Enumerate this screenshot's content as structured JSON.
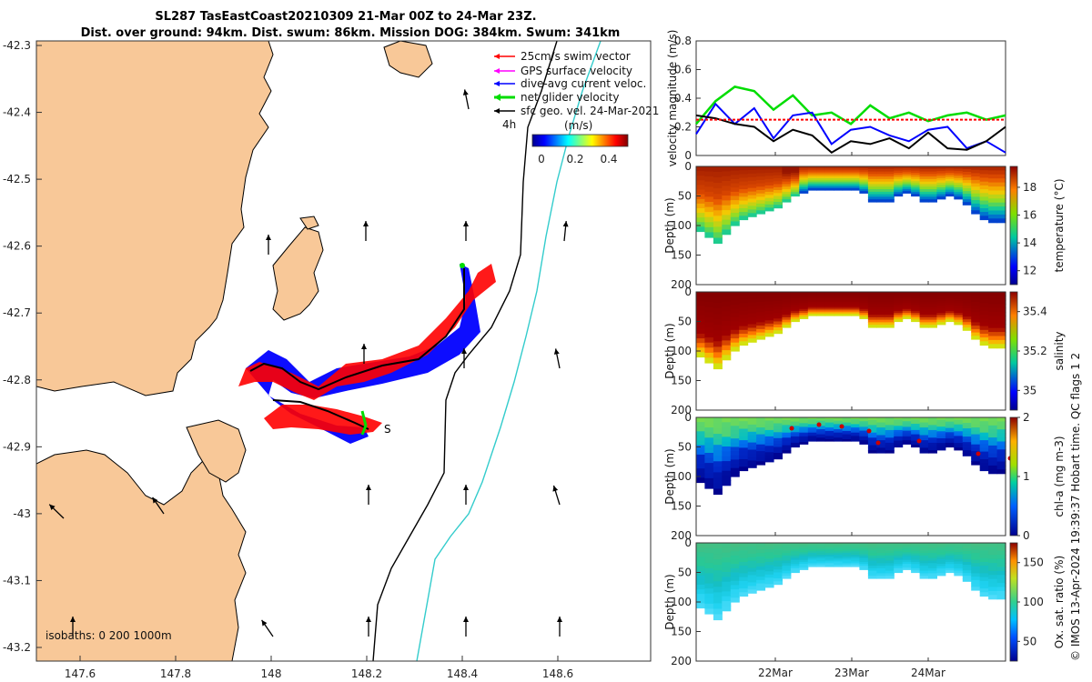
{
  "title": {
    "line1": "SL287 TasEastCoast20210309 21-Mar 00Z to 24-Mar 23Z.",
    "line2": "Dist. over ground: 94km. Dist. swum: 86km. Mission DOG: 384km. Swum: 341km"
  },
  "colors": {
    "land": "#f8c898",
    "shelf_200": "#000000",
    "isobath_1000": "#33cccc",
    "swim_vec": "#ff0000",
    "dive_avg": "#0000ff",
    "net_vel": "#00dd00",
    "gps": "#ff00ff",
    "sfc_geo": "#000000"
  },
  "map": {
    "xticks": [
      "147.6",
      "147.8",
      "148",
      "148.2",
      "148.4",
      "148.6"
    ],
    "yticks": [
      "-42.3",
      "-42.4",
      "-42.5",
      "-42.6",
      "-42.7",
      "-42.8",
      "-42.9",
      "-43",
      "-43.1",
      "-43.2"
    ],
    "isobath_text": "isobaths: 0   200  1000m",
    "start_label": "S",
    "time_label": "4h",
    "legend": [
      {
        "name": "swim",
        "label": "25cm/s swim vector"
      },
      {
        "name": "gps",
        "label": "GPS surface velocity"
      },
      {
        "name": "dive",
        "label": "dive-avg current veloc."
      },
      {
        "name": "net",
        "label": "net glider velocity"
      },
      {
        "name": "sfc",
        "label": "sfc geo. vel. 24-Mar-2021"
      }
    ],
    "colorbar": {
      "label": "(m/s)",
      "ticks": [
        "0",
        "0.2",
        "0.4"
      ]
    }
  },
  "chart_data": [
    {
      "type": "line",
      "name": "velocity-panel",
      "ylabel": "velocity magnitude (m/s)",
      "ylim": [
        0,
        0.8
      ],
      "yticks": [
        "0",
        "0.2",
        "0.4",
        "0.6",
        "0.8"
      ],
      "x_days": [
        0,
        0.25,
        0.5,
        0.75,
        1,
        1.25,
        1.5,
        1.75,
        2,
        2.25,
        2.5,
        2.75,
        3,
        3.25,
        3.5,
        3.75,
        4
      ],
      "series": [
        {
          "name": "net glider velocity",
          "color": "#00dd00",
          "values": [
            0.22,
            0.38,
            0.48,
            0.45,
            0.32,
            0.42,
            0.28,
            0.3,
            0.22,
            0.35,
            0.26,
            0.3,
            0.24,
            0.28,
            0.3,
            0.25,
            0.28
          ]
        },
        {
          "name": "dive-avg current veloc.",
          "color": "#0000ff",
          "values": [
            0.15,
            0.36,
            0.22,
            0.33,
            0.12,
            0.28,
            0.3,
            0.08,
            0.18,
            0.2,
            0.14,
            0.1,
            0.18,
            0.2,
            0.05,
            0.1,
            0.02
          ]
        },
        {
          "name": "sfc geo. vel.",
          "color": "#000000",
          "values": [
            0.28,
            0.26,
            0.22,
            0.2,
            0.1,
            0.18,
            0.14,
            0.02,
            0.1,
            0.08,
            0.12,
            0.05,
            0.16,
            0.05,
            0.04,
            0.1,
            0.2
          ]
        },
        {
          "name": "swim vector 25cm/s",
          "color": "#ff0000",
          "values": [
            0.25,
            0.25,
            0.25,
            0.25,
            0.25,
            0.25,
            0.25,
            0.25,
            0.25,
            0.25,
            0.25,
            0.25,
            0.25,
            0.25,
            0.25,
            0.25,
            0.25
          ]
        }
      ]
    },
    {
      "type": "heatmap",
      "name": "temperature-panel",
      "ylabel": "Depth (m)",
      "cblabel": "temperature (°C)",
      "yticks": [
        "0",
        "50",
        "100",
        "150",
        "200"
      ],
      "cbticks": [
        "12",
        "14",
        "16",
        "18"
      ],
      "clim": [
        11,
        19.5
      ]
    },
    {
      "type": "heatmap",
      "name": "salinity-panel",
      "ylabel": "Depth (m)",
      "cblabel": "salinity",
      "yticks": [
        "0",
        "50",
        "100",
        "150",
        "200"
      ],
      "cbticks": [
        "35",
        "35.2",
        "35.4"
      ],
      "clim": [
        34.9,
        35.5
      ]
    },
    {
      "type": "heatmap",
      "name": "chla-panel",
      "ylabel": "Depth (m)",
      "cblabel": "chl-a (mg m-3)",
      "yticks": [
        "0",
        "50",
        "100",
        "150",
        "200"
      ],
      "cbticks": [
        "0",
        "1",
        "2"
      ],
      "clim": [
        0,
        2
      ]
    },
    {
      "type": "heatmap",
      "name": "oxygen-panel",
      "ylabel": "Depth (m)",
      "cblabel": "Ox. sat. ratio (%)",
      "yticks": [
        "0",
        "50",
        "100",
        "150",
        "200"
      ],
      "cbticks": [
        "50",
        "100",
        "150"
      ],
      "clim": [
        25,
        175
      ]
    }
  ],
  "time_axis": {
    "ticks": [
      "22Mar",
      "23Mar",
      "24Mar"
    ]
  },
  "profile_bottom_m": [
    110,
    120,
    130,
    115,
    100,
    90,
    85,
    80,
    75,
    70,
    60,
    50,
    45,
    40,
    40,
    40,
    40,
    40,
    40,
    45,
    60,
    60,
    60,
    50,
    45,
    50,
    60,
    60,
    55,
    50,
    55,
    65,
    80,
    90,
    95,
    95
  ],
  "credit": "© IMOS 13-Apr-2024 19:39:37 Hobart time. QC flags 1  2"
}
